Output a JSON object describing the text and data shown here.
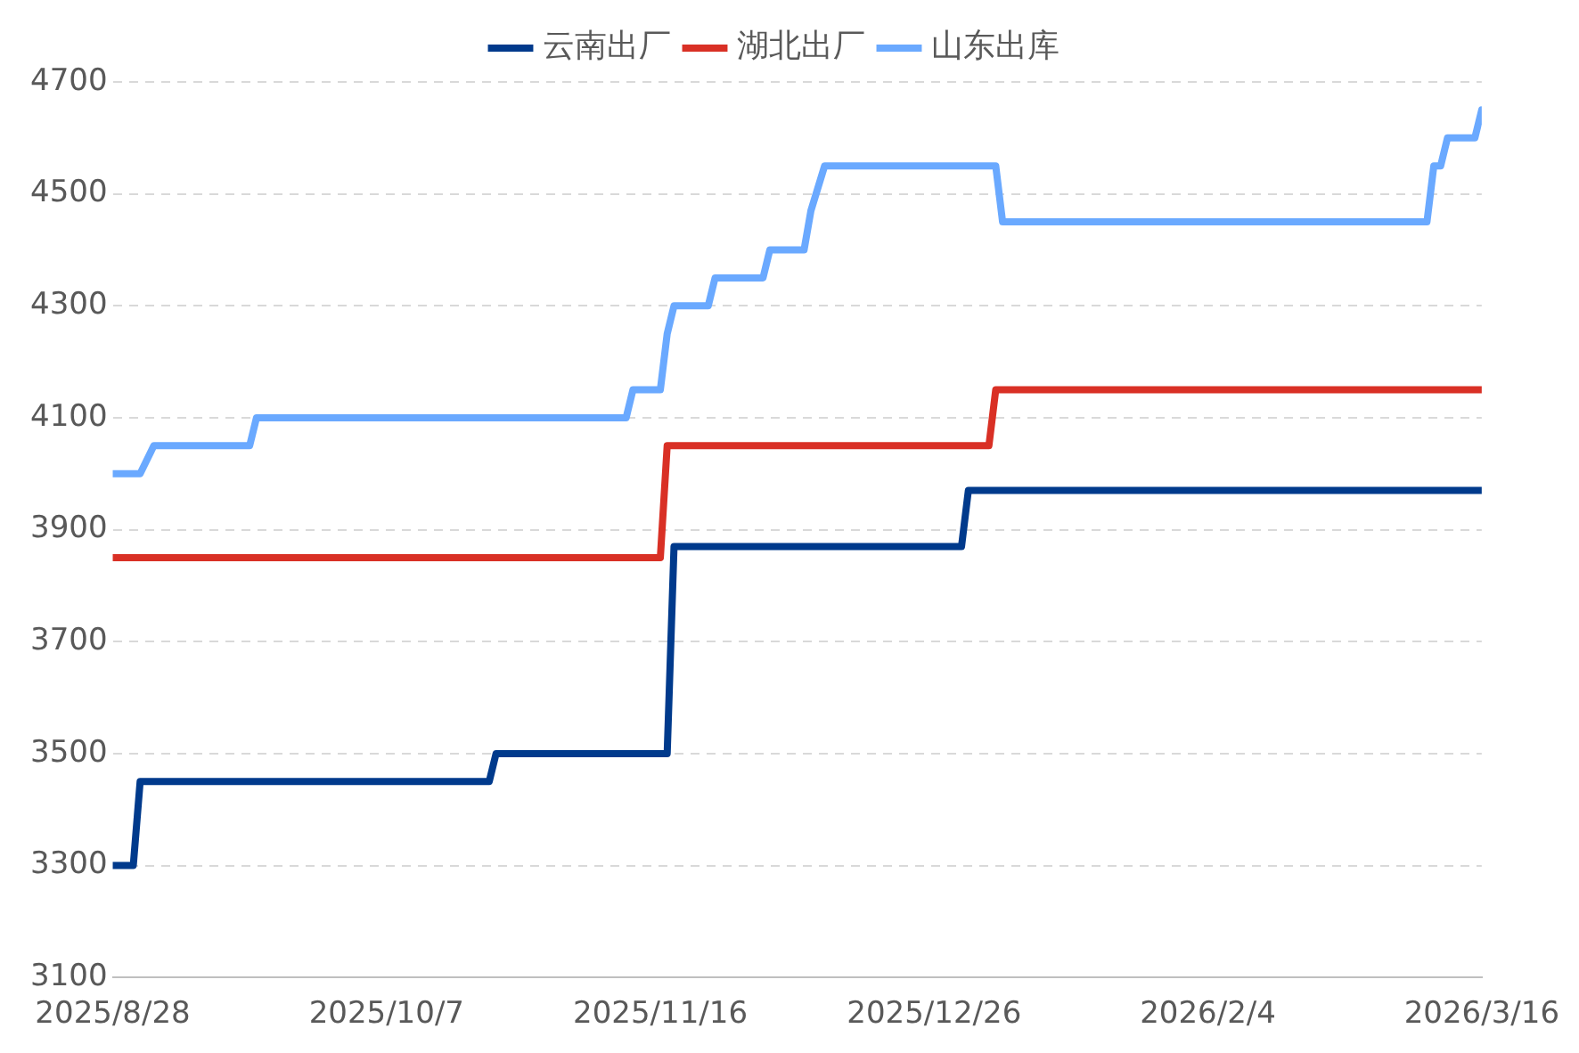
{
  "chart_data": {
    "type": "line",
    "legend": "top",
    "grid": "y",
    "line_style": "solid",
    "marker": "none",
    "xlim": [
      "2025-08-28",
      "2026-03-16"
    ],
    "xticks": [
      {
        "value": "2025-08-28",
        "label": "2025/8/28"
      },
      {
        "value": "2025-10-07",
        "label": "2025/10/7"
      },
      {
        "value": "2025-11-16",
        "label": "2025/11/16"
      },
      {
        "value": "2025-12-26",
        "label": "2025/12/26"
      },
      {
        "value": "2026-02-04",
        "label": "2026/2/4"
      },
      {
        "value": "2026-03-16",
        "label": "2026/3/16"
      }
    ],
    "ylim": [
      3100,
      4700
    ],
    "yticks": [
      3100,
      3300,
      3500,
      3700,
      3900,
      4100,
      4300,
      4500,
      4700
    ],
    "series": [
      {
        "name": "云南出厂",
        "color": "#003a8c",
        "x": [
          "2025-08-28",
          "2025-08-31",
          "2025-09-01",
          "2025-10-22",
          "2025-10-23",
          "2025-11-17",
          "2025-11-18",
          "2025-12-30",
          "2025-12-31",
          "2026-03-16"
        ],
        "values": [
          3300,
          3300,
          3450,
          3450,
          3500,
          3500,
          3870,
          3870,
          3970,
          3970
        ]
      },
      {
        "name": "湖北出厂",
        "color": "#d93025",
        "x": [
          "2025-08-28",
          "2025-11-16",
          "2025-11-17",
          "2026-01-03",
          "2026-01-04",
          "2026-03-16"
        ],
        "values": [
          3850,
          3850,
          4050,
          4050,
          4150,
          4150
        ]
      },
      {
        "name": "山东出库",
        "color": "#6aa9ff",
        "x": [
          "2025-08-28",
          "2025-09-01",
          "2025-09-03",
          "2025-09-17",
          "2025-09-18",
          "2025-11-11",
          "2025-11-12",
          "2025-11-16",
          "2025-11-17",
          "2025-11-18",
          "2025-11-23",
          "2025-11-24",
          "2025-12-01",
          "2025-12-02",
          "2025-12-07",
          "2025-12-08",
          "2025-12-10",
          "2026-01-04",
          "2026-01-05",
          "2026-03-08",
          "2026-03-09",
          "2026-03-10",
          "2026-03-11",
          "2026-03-15",
          "2026-03-16"
        ],
        "values": [
          4000,
          4000,
          4050,
          4050,
          4100,
          4100,
          4150,
          4150,
          4250,
          4300,
          4300,
          4350,
          4350,
          4400,
          4400,
          4470,
          4550,
          4550,
          4450,
          4450,
          4550,
          4550,
          4600,
          4600,
          4650
        ]
      }
    ]
  }
}
